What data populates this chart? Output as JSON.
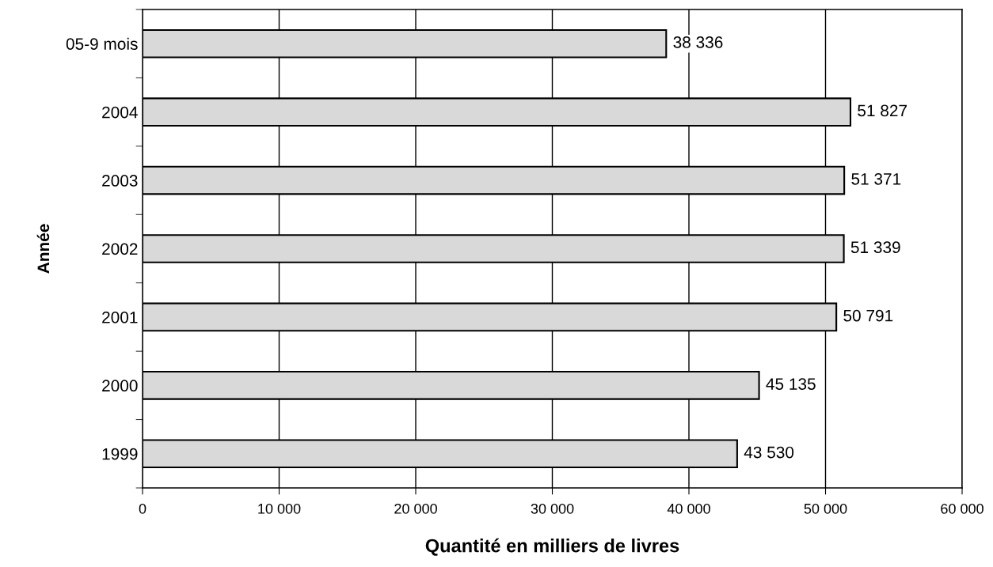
{
  "chart_data": {
    "type": "bar",
    "orientation": "horizontal",
    "xlabel": "Quantité en milliers de livres",
    "ylabel": "Année",
    "categories": [
      "05-9 mois",
      "2004",
      "2003",
      "2002",
      "2001",
      "2000",
      "1999"
    ],
    "values": [
      38336,
      51827,
      51371,
      51339,
      50791,
      45135,
      43530
    ],
    "value_labels": [
      "38 336",
      "51 827",
      "51 371",
      "51 339",
      "50 791",
      "45 135",
      "43 530"
    ],
    "color": "#d9d9d9",
    "xlim": [
      0,
      60000
    ],
    "xticks": [
      0,
      {
        "value": 10000,
        "label": "10 000"
      },
      {
        "value": 20000,
        "label": "20 000"
      },
      {
        "value": 30000,
        "label": "30 000"
      },
      {
        "value": 40000,
        "label": "40 000"
      },
      {
        "value": 50000,
        "label": "50 000"
      },
      {
        "value": 60000,
        "label": "60 000"
      }
    ],
    "grid": "x",
    "legend": false
  }
}
